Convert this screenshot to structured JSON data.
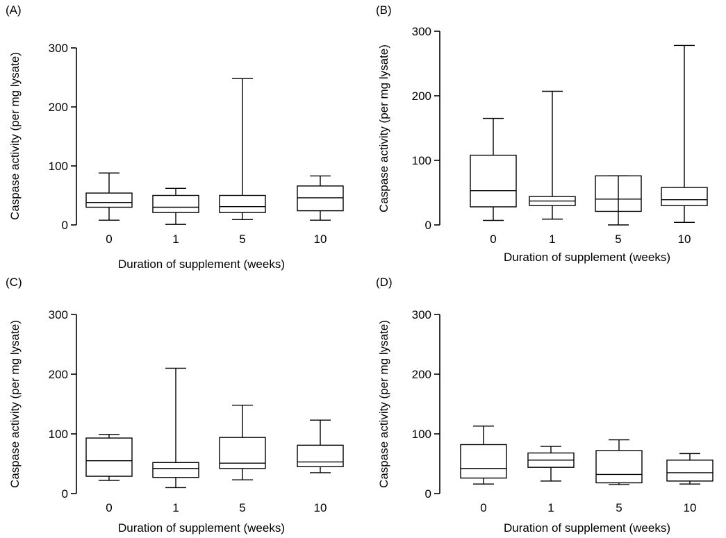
{
  "chart_data": [
    {
      "type": "box",
      "panel_label": "(A)",
      "xlabel": "Duration of supplement (weeks)",
      "ylabel": "Caspase activity (per mg lysate)",
      "ylim": [
        0,
        300
      ],
      "yticks": [
        "0",
        "100",
        "200",
        "300"
      ],
      "categories": [
        "0",
        "1",
        "5",
        "10"
      ],
      "boxes": [
        {
          "min": 8,
          "q1": 30,
          "median": 38,
          "q3": 54,
          "max": 88
        },
        {
          "min": 1,
          "q1": 21,
          "median": 30,
          "q3": 50,
          "max": 62
        },
        {
          "min": 9,
          "q1": 21,
          "median": 31,
          "q3": 50,
          "max": 248
        },
        {
          "min": 8,
          "q1": 24,
          "median": 46,
          "q3": 66,
          "max": 83
        }
      ]
    },
    {
      "type": "box",
      "panel_label": "(B)",
      "xlabel": "Duration of supplement (weeks)",
      "ylabel": "Caspase activity (per mg lysate)",
      "ylim": [
        0,
        300
      ],
      "yticks": [
        "0",
        "100",
        "200",
        "300"
      ],
      "categories": [
        "0",
        "1",
        "5",
        "10"
      ],
      "boxes": [
        {
          "min": 7,
          "q1": 28,
          "median": 53,
          "q3": 108,
          "max": 165
        },
        {
          "min": 9,
          "q1": 30,
          "median": 37,
          "q3": 44,
          "max": 207
        },
        {
          "min": 0,
          "q1": 21,
          "median": 40,
          "q3": 76,
          "max": 76
        },
        {
          "min": 4,
          "q1": 30,
          "median": 39,
          "q3": 58,
          "max": 278
        }
      ]
    },
    {
      "type": "box",
      "panel_label": "(C)",
      "xlabel": "Duration of supplement (weeks)",
      "ylabel": "Caspase activity (per mg lysate)",
      "ylim": [
        0,
        300
      ],
      "yticks": [
        "0",
        "100",
        "200",
        "300"
      ],
      "categories": [
        "0",
        "1",
        "5",
        "10"
      ],
      "boxes": [
        {
          "min": 22,
          "q1": 29,
          "median": 55,
          "q3": 93,
          "max": 99
        },
        {
          "min": 10,
          "q1": 27,
          "median": 42,
          "q3": 52,
          "max": 210
        },
        {
          "min": 23,
          "q1": 42,
          "median": 51,
          "q3": 94,
          "max": 148
        },
        {
          "min": 35,
          "q1": 45,
          "median": 53,
          "q3": 81,
          "max": 123
        }
      ]
    },
    {
      "type": "box",
      "panel_label": "(D)",
      "xlabel": "Duration of supplement (weeks)",
      "ylabel": "Caspase activity (per mg lysate)",
      "ylim": [
        0,
        300
      ],
      "yticks": [
        "0",
        "100",
        "200",
        "300"
      ],
      "categories": [
        "0",
        "1",
        "5",
        "10"
      ],
      "boxes": [
        {
          "min": 16,
          "q1": 26,
          "median": 42,
          "q3": 82,
          "max": 113
        },
        {
          "min": 21,
          "q1": 44,
          "median": 56,
          "q3": 68,
          "max": 79
        },
        {
          "min": 15,
          "q1": 18,
          "median": 32,
          "q3": 72,
          "max": 90
        },
        {
          "min": 16,
          "q1": 21,
          "median": 35,
          "q3": 56,
          "max": 67
        }
      ]
    }
  ]
}
